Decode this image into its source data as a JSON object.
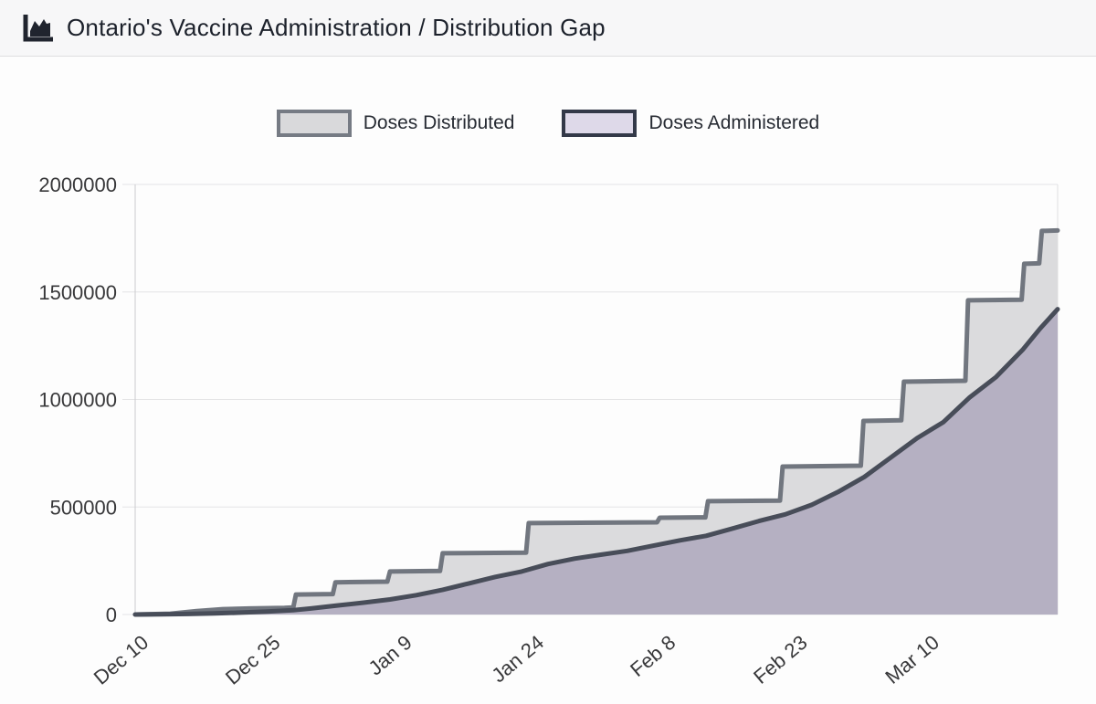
{
  "header": {
    "title": "Ontario's Vaccine Administration / Distribution Gap",
    "icon": "area-chart-icon"
  },
  "legend": {
    "items": [
      {
        "label": "Doses Distributed"
      },
      {
        "label": "Doses Administered"
      }
    ]
  },
  "chart_data": {
    "type": "area",
    "title": "Ontario's Vaccine Administration / Distribution Gap",
    "xlabel": "",
    "ylabel": "",
    "x_start_date": "Dec 10",
    "x_end_date": "Mar 25",
    "x_range_days": [
      0,
      105
    ],
    "ylim": [
      0,
      2000000
    ],
    "grid": "horizontal",
    "legend_position": "top-center",
    "y_ticks": [
      0,
      500000,
      1000000,
      1500000,
      2000000
    ],
    "x_ticks": [
      {
        "day": 0,
        "label": "Dec 10"
      },
      {
        "day": 15,
        "label": "Dec 25"
      },
      {
        "day": 30,
        "label": "Jan 9"
      },
      {
        "day": 45,
        "label": "Jan 24"
      },
      {
        "day": 60,
        "label": "Feb 8"
      },
      {
        "day": 75,
        "label": "Feb 23"
      },
      {
        "day": 90,
        "label": "Mar 10"
      }
    ],
    "series": [
      {
        "name": "Doses Distributed",
        "style": "step",
        "fill": "#dbdbdd",
        "stroke": "#71767f",
        "swatch_fill": "#d9d9db",
        "swatch_stroke": "#767b84",
        "points": [
          [
            0,
            0
          ],
          [
            4,
            4000
          ],
          [
            7,
            16000
          ],
          [
            10,
            25000
          ],
          [
            13,
            28000
          ],
          [
            17,
            31000
          ],
          [
            18,
            33000
          ],
          [
            18.3,
            93000
          ],
          [
            22.5,
            95000
          ],
          [
            22.8,
            150000
          ],
          [
            28.7,
            153000
          ],
          [
            29,
            200000
          ],
          [
            34.7,
            203000
          ],
          [
            35,
            285000
          ],
          [
            44.5,
            288000
          ],
          [
            44.8,
            425000
          ],
          [
            59.4,
            429000
          ],
          [
            59.7,
            450000
          ],
          [
            64.9,
            452000
          ],
          [
            65.2,
            527000
          ],
          [
            73.4,
            530000
          ],
          [
            73.7,
            688000
          ],
          [
            82.6,
            692000
          ],
          [
            82.9,
            900000
          ],
          [
            87.2,
            903000
          ],
          [
            87.5,
            1083000
          ],
          [
            94.5,
            1087000
          ],
          [
            94.8,
            1461000
          ],
          [
            100.9,
            1464000
          ],
          [
            101.2,
            1631000
          ],
          [
            102.9,
            1633000
          ],
          [
            103.2,
            1784000
          ],
          [
            105,
            1786000
          ]
        ]
      },
      {
        "name": "Doses Administered",
        "style": "smooth",
        "fill": "#b5b0c2",
        "stroke": "#484d59",
        "swatch_fill": "#ded9e9",
        "swatch_stroke": "#333948",
        "points": [
          [
            0,
            0
          ],
          [
            3,
            1000
          ],
          [
            6,
            2500
          ],
          [
            9,
            5000
          ],
          [
            12,
            9000
          ],
          [
            15,
            14000
          ],
          [
            18,
            20000
          ],
          [
            20,
            28000
          ],
          [
            23,
            42000
          ],
          [
            26,
            55000
          ],
          [
            29,
            70000
          ],
          [
            32,
            90000
          ],
          [
            35,
            115000
          ],
          [
            38,
            145000
          ],
          [
            41,
            175000
          ],
          [
            44,
            200000
          ],
          [
            47,
            235000
          ],
          [
            50,
            260000
          ],
          [
            53,
            278000
          ],
          [
            56,
            296000
          ],
          [
            59,
            320000
          ],
          [
            62,
            345000
          ],
          [
            65,
            366000
          ],
          [
            68,
            400000
          ],
          [
            71,
            435000
          ],
          [
            74,
            466000
          ],
          [
            77,
            510000
          ],
          [
            80,
            570000
          ],
          [
            83,
            640000
          ],
          [
            86,
            730000
          ],
          [
            89,
            820000
          ],
          [
            92,
            895000
          ],
          [
            95,
            1010000
          ],
          [
            98,
            1105000
          ],
          [
            101,
            1230000
          ],
          [
            103,
            1330000
          ],
          [
            105,
            1420000
          ]
        ]
      }
    ]
  }
}
